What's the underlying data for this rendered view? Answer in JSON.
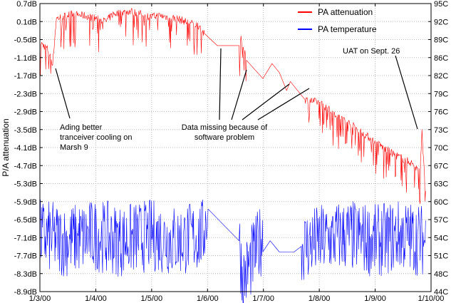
{
  "chart_data": {
    "type": "line",
    "ylabel": "P/A attenuation",
    "xlim": [
      "1/3/00",
      "1/10/00"
    ],
    "x_ticks": [
      "1/3/00",
      "1/4/00",
      "1/5/00",
      "1/6/00",
      "1/7/00",
      "1/8/00",
      "1/9/00",
      "1/10/00"
    ],
    "y_left": {
      "unit": "dB",
      "ylim": [
        -8.9,
        0.7
      ],
      "ticks": [
        "0.7dB",
        "0.1dB",
        "-0.5dB",
        "-1.1dB",
        "-1.7dB",
        "-2.3dB",
        "-2.9dB",
        "-3.5dB",
        "-4.1dB",
        "-4.7dB",
        "-5.3dB",
        "-5.9dB",
        "-6.5dB",
        "-7.1dB",
        "-7.7dB",
        "-8.3dB",
        "-8.9dB"
      ]
    },
    "y_right": {
      "ylim": [
        44,
        95
      ],
      "ticks": [
        "95C",
        "92C",
        "89C",
        "86C",
        "82C",
        "79C",
        "76C",
        "73C",
        "70C",
        "67C",
        "63C",
        "60C",
        "57C",
        "54C",
        "51C",
        "48C",
        "44C"
      ]
    },
    "grid": true,
    "legend_position": "top-right",
    "series": [
      {
        "name": "PA attenuation",
        "color": "#ff0000",
        "axis": "left",
        "points": [
          {
            "x": "2000-03-01",
            "y": -0.6
          },
          {
            "x": "2000-03-05",
            "y": -0.8
          },
          {
            "x": "2000-03-08",
            "y": -1.3
          },
          {
            "x": "2000-03-10",
            "y": 0.2
          },
          {
            "x": "2000-03-18",
            "y": 0.35
          },
          {
            "x": "2000-03-25",
            "y": 0.3
          },
          {
            "x": "2000-04-01",
            "y": 0.2
          },
          {
            "x": "2000-04-06",
            "y": 0.1
          },
          {
            "x": "2000-04-10",
            "y": 0.35
          },
          {
            "x": "2000-04-20",
            "y": 0.45
          },
          {
            "x": "2000-04-30",
            "y": 0.25
          },
          {
            "x": "2000-05-05",
            "y": 0.3
          },
          {
            "x": "2000-05-15",
            "y": 0.2
          },
          {
            "x": "2000-05-22",
            "y": 0.05
          },
          {
            "x": "2000-05-26",
            "y": 0.0
          },
          {
            "x": "2000-05-28",
            "y": -0.1
          },
          {
            "x": "2000-05-30",
            "y": -0.35
          },
          {
            "x": "2000-06-06",
            "y": -0.7
          },
          {
            "x": "2000-06-18",
            "y": -0.7
          },
          {
            "x": "2000-06-19",
            "y": -0.5
          },
          {
            "x": "2000-06-22",
            "y": -1.1
          },
          {
            "x": "2000-07-01",
            "y": -1.8
          },
          {
            "x": "2000-07-06",
            "y": -1.3
          },
          {
            "x": "2000-07-10",
            "y": -1.6
          },
          {
            "x": "2000-07-14",
            "y": -2.2
          },
          {
            "x": "2000-07-16",
            "y": -1.9
          },
          {
            "x": "2000-07-24",
            "y": -2.5
          },
          {
            "x": "2000-08-01",
            "y": -2.6
          },
          {
            "x": "2000-08-10",
            "y": -3.0
          },
          {
            "x": "2000-08-20",
            "y": -3.4
          },
          {
            "x": "2000-08-31",
            "y": -3.9
          },
          {
            "x": "2000-09-10",
            "y": -4.3
          },
          {
            "x": "2000-09-20",
            "y": -4.6
          },
          {
            "x": "2000-09-25",
            "y": -4.9
          },
          {
            "x": "2000-09-26",
            "y": -3.6
          },
          {
            "x": "2000-09-28",
            "y": -5.5
          }
        ]
      },
      {
        "name": "PA temperature",
        "color": "#0000ff",
        "axis": "right",
        "points": [
          {
            "x": "2000-03-01",
            "y": 54
          },
          {
            "x": "2000-03-15",
            "y": 53
          },
          {
            "x": "2000-04-01",
            "y": 54
          },
          {
            "x": "2000-04-15",
            "y": 53
          },
          {
            "x": "2000-05-01",
            "y": 54
          },
          {
            "x": "2000-05-15",
            "y": 53
          },
          {
            "x": "2000-05-29",
            "y": 54
          },
          {
            "x": "2000-06-01",
            "y": 58
          },
          {
            "x": "2000-06-18",
            "y": 53
          },
          {
            "x": "2000-06-20",
            "y": 46
          },
          {
            "x": "2000-07-01",
            "y": 54
          },
          {
            "x": "2000-07-05",
            "y": 53
          },
          {
            "x": "2000-07-10",
            "y": 51
          },
          {
            "x": "2000-07-18",
            "y": 51
          },
          {
            "x": "2000-07-22",
            "y": 52
          },
          {
            "x": "2000-08-01",
            "y": 53
          },
          {
            "x": "2000-08-15",
            "y": 54
          },
          {
            "x": "2000-09-01",
            "y": 53
          },
          {
            "x": "2000-09-15",
            "y": 54
          },
          {
            "x": "2000-09-28",
            "y": 53
          }
        ]
      }
    ],
    "annotations": [
      {
        "text": "Ading better tranceiver cooling on Marsh 9",
        "lines": [
          "Ading better",
          "tranceiver cooling on",
          "Marsh 9"
        ]
      },
      {
        "text": "Data missing because of software problem",
        "lines": [
          "Data missing because of",
          "software problem"
        ]
      },
      {
        "text": "UAT on Sept. 26",
        "lines": [
          "UAT on Sept. 26"
        ]
      }
    ]
  }
}
